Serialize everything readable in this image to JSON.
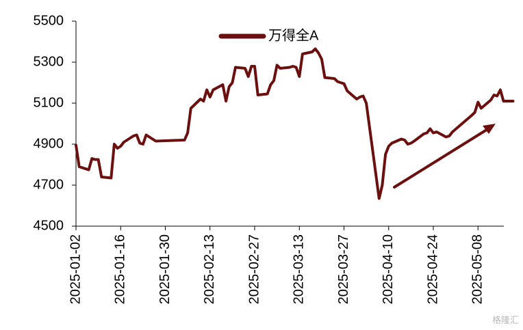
{
  "chart_data": {
    "type": "line",
    "y_ticks": [
      4500,
      4700,
      4900,
      5100,
      5300,
      5500
    ],
    "ylim": [
      4500,
      5500
    ],
    "x_ticks": [
      "2025-01-02",
      "2025-01-16",
      "2025-01-30",
      "2025-02-13",
      "2025-02-27",
      "2025-03-13",
      "2025-03-27",
      "2025-04-10",
      "2025-04-24",
      "2025-05-08"
    ],
    "legend_position": "top-center",
    "annotation": "upward trend arrow",
    "color": "#6b0f0f",
    "series": [
      {
        "name": "万得全A",
        "points": [
          [
            "2025-01-02",
            4895
          ],
          [
            "2025-01-03",
            4790
          ],
          [
            "2025-01-06",
            4775
          ],
          [
            "2025-01-07",
            4830
          ],
          [
            "2025-01-08",
            4825
          ],
          [
            "2025-01-09",
            4825
          ],
          [
            "2025-01-10",
            4740
          ],
          [
            "2025-01-13",
            4735
          ],
          [
            "2025-01-14",
            4900
          ],
          [
            "2025-01-15",
            4880
          ],
          [
            "2025-01-16",
            4890
          ],
          [
            "2025-01-17",
            4910
          ],
          [
            "2025-01-20",
            4940
          ],
          [
            "2025-01-21",
            4945
          ],
          [
            "2025-01-22",
            4905
          ],
          [
            "2025-01-23",
            4900
          ],
          [
            "2025-01-24",
            4945
          ],
          [
            "2025-01-27",
            4915
          ],
          [
            "2025-02-05",
            4920
          ],
          [
            "2025-02-06",
            4955
          ],
          [
            "2025-02-07",
            5075
          ],
          [
            "2025-02-10",
            5120
          ],
          [
            "2025-02-11",
            5110
          ],
          [
            "2025-02-12",
            5165
          ],
          [
            "2025-02-13",
            5130
          ],
          [
            "2025-02-14",
            5165
          ],
          [
            "2025-02-17",
            5190
          ],
          [
            "2025-02-18",
            5110
          ],
          [
            "2025-02-19",
            5180
          ],
          [
            "2025-02-20",
            5200
          ],
          [
            "2025-02-21",
            5275
          ],
          [
            "2025-02-24",
            5270
          ],
          [
            "2025-02-25",
            5230
          ],
          [
            "2025-02-26",
            5280
          ],
          [
            "2025-02-27",
            5280
          ],
          [
            "2025-02-28",
            5140
          ],
          [
            "2025-03-03",
            5145
          ],
          [
            "2025-03-04",
            5190
          ],
          [
            "2025-03-05",
            5210
          ],
          [
            "2025-03-06",
            5285
          ],
          [
            "2025-03-07",
            5270
          ],
          [
            "2025-03-10",
            5275
          ],
          [
            "2025-03-11",
            5280
          ],
          [
            "2025-03-12",
            5275
          ],
          [
            "2025-03-13",
            5230
          ],
          [
            "2025-03-14",
            5340
          ],
          [
            "2025-03-17",
            5350
          ],
          [
            "2025-03-18",
            5365
          ],
          [
            "2025-03-19",
            5345
          ],
          [
            "2025-03-20",
            5315
          ],
          [
            "2025-03-21",
            5225
          ],
          [
            "2025-03-24",
            5220
          ],
          [
            "2025-03-25",
            5205
          ],
          [
            "2025-03-26",
            5200
          ],
          [
            "2025-03-27",
            5195
          ],
          [
            "2025-03-28",
            5160
          ],
          [
            "2025-03-31",
            5120
          ],
          [
            "2025-04-01",
            5130
          ],
          [
            "2025-04-02",
            5135
          ],
          [
            "2025-04-03",
            5100
          ],
          [
            "2025-04-07",
            4635
          ],
          [
            "2025-04-08",
            4700
          ],
          [
            "2025-04-09",
            4850
          ],
          [
            "2025-04-10",
            4890
          ],
          [
            "2025-04-11",
            4905
          ],
          [
            "2025-04-14",
            4925
          ],
          [
            "2025-04-15",
            4920
          ],
          [
            "2025-04-16",
            4900
          ],
          [
            "2025-04-17",
            4905
          ],
          [
            "2025-04-18",
            4915
          ],
          [
            "2025-04-21",
            4950
          ],
          [
            "2025-04-22",
            4955
          ],
          [
            "2025-04-23",
            4975
          ],
          [
            "2025-04-24",
            4955
          ],
          [
            "2025-04-25",
            4960
          ],
          [
            "2025-04-28",
            4935
          ],
          [
            "2025-04-29",
            4940
          ],
          [
            "2025-04-30",
            4960
          ],
          [
            "2025-05-06",
            5040
          ],
          [
            "2025-05-07",
            5055
          ],
          [
            "2025-05-08",
            5105
          ],
          [
            "2025-05-09",
            5075
          ],
          [
            "2025-05-12",
            5115
          ],
          [
            "2025-05-13",
            5140
          ],
          [
            "2025-05-14",
            5135
          ],
          [
            "2025-05-15",
            5165
          ],
          [
            "2025-05-16",
            5110
          ],
          [
            "2025-05-19",
            5110
          ]
        ]
      }
    ]
  },
  "watermark": "格隆汇"
}
